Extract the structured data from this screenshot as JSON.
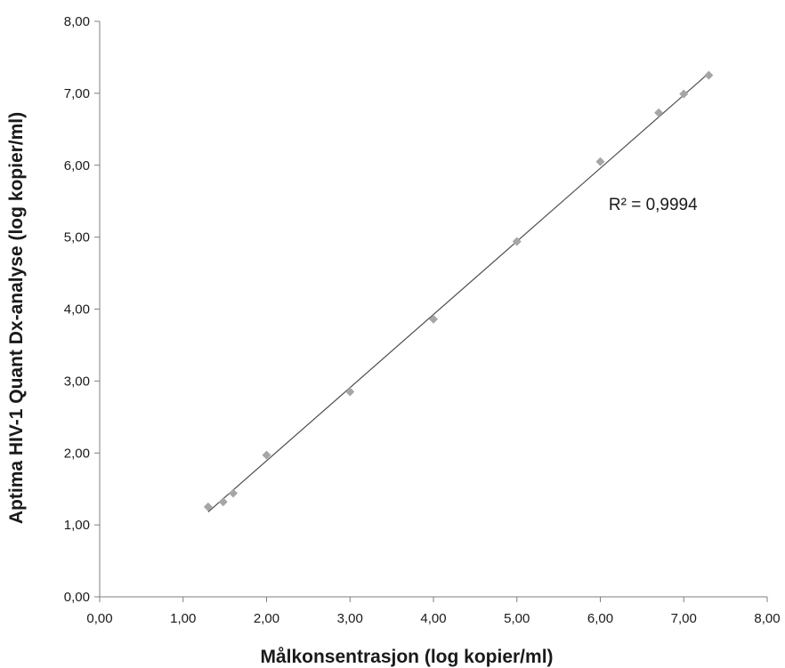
{
  "chart_data": {
    "type": "scatter",
    "title": "",
    "xlabel": "Målkonsentrasjon (log kopier/ml)",
    "ylabel": "Aptima HIV-1 Quant Dx-analyse (log kopier/ml)",
    "xlim": [
      0,
      8
    ],
    "ylim": [
      0,
      8
    ],
    "x_ticks": [
      "0,00",
      "1,00",
      "2,00",
      "3,00",
      "4,00",
      "5,00",
      "6,00",
      "7,00",
      "8,00"
    ],
    "y_ticks": [
      "0,00",
      "1,00",
      "2,00",
      "3,00",
      "4,00",
      "5,00",
      "6,00",
      "7,00",
      "8,00"
    ],
    "grid": false,
    "legend": "none",
    "marker_color": "#a6a6a6",
    "trendline_color": "#4d4d4d",
    "series": [
      {
        "points": [
          {
            "x": 1.3,
            "y": 1.25
          },
          {
            "x": 1.48,
            "y": 1.32
          },
          {
            "x": 1.6,
            "y": 1.44
          },
          {
            "x": 2.0,
            "y": 1.97
          },
          {
            "x": 3.0,
            "y": 2.85
          },
          {
            "x": 4.0,
            "y": 3.86
          },
          {
            "x": 5.0,
            "y": 4.94
          },
          {
            "x": 6.0,
            "y": 6.05
          },
          {
            "x": 6.7,
            "y": 6.73
          },
          {
            "x": 7.0,
            "y": 6.99
          },
          {
            "x": 7.3,
            "y": 7.25
          }
        ]
      }
    ],
    "trendline": {
      "x1": 1.3,
      "y1": 1.18,
      "x2": 7.3,
      "y2": 7.28
    },
    "annotations": [
      {
        "text": "R² = 0,9994",
        "x": 6.1,
        "y": 5.38
      }
    ]
  }
}
